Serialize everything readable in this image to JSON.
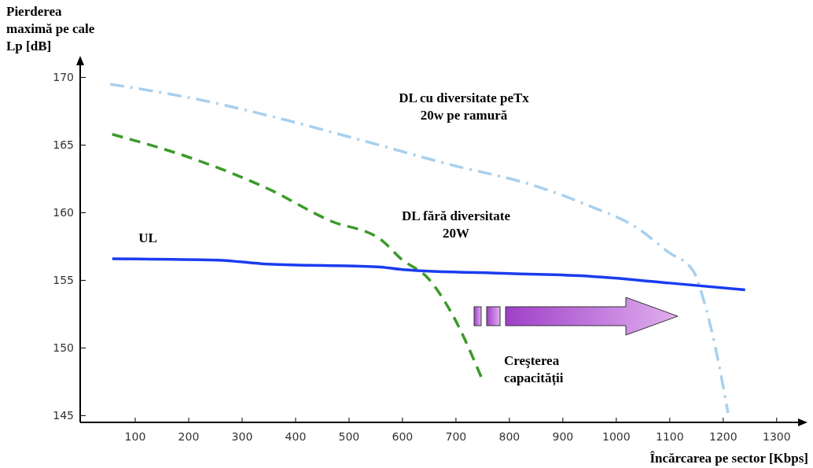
{
  "chart_data": {
    "type": "line",
    "ylabel": "Pierderea\nmaximă pe cale\nLp [dB]",
    "xlabel": "Încărcarea pe sector [Kbps]",
    "xlim": [
      0,
      1340
    ],
    "ylim": [
      144.5,
      170.9
    ],
    "xticks": [
      100,
      200,
      300,
      400,
      500,
      600,
      700,
      800,
      900,
      1000,
      1100,
      1200,
      1300
    ],
    "yticks": [
      145,
      150,
      155,
      160,
      165,
      170
    ],
    "grid": false,
    "annotations": [
      "Creşterea\ncapacității"
    ],
    "series": [
      {
        "name": "DL cu diversitate peTx\n20w pe ramură",
        "color": "#a8d0ee",
        "line_style": "dashdot",
        "x": [
          53,
          215,
          347,
          538,
          685,
          847,
          950,
          1038,
          1097,
          1144,
          1163,
          1185,
          1209
        ],
        "values": [
          169.5,
          168.4,
          167.2,
          165.2,
          163.6,
          162.0,
          160.5,
          158.9,
          157.1,
          155.7,
          153.6,
          150.1,
          145.2
        ]
      },
      {
        "name": "DL fără diversitate\n20W",
        "color": "#3a9a2a",
        "line_style": "dashed",
        "x": [
          57,
          215,
          347,
          465,
          560,
          597,
          649,
          693,
          750
        ],
        "values": [
          165.8,
          163.9,
          161.8,
          159.4,
          158.0,
          156.6,
          155.1,
          152.5,
          147.6
        ]
      },
      {
        "name": "UL",
        "color": "#1a3cf0",
        "line_style": "solid",
        "x": [
          57,
          254,
          347,
          553,
          600,
          800,
          950,
          1100,
          1241
        ],
        "values": [
          156.6,
          156.5,
          156.2,
          156.0,
          155.8,
          155.5,
          155.3,
          154.8,
          154.3
        ]
      }
    ]
  }
}
